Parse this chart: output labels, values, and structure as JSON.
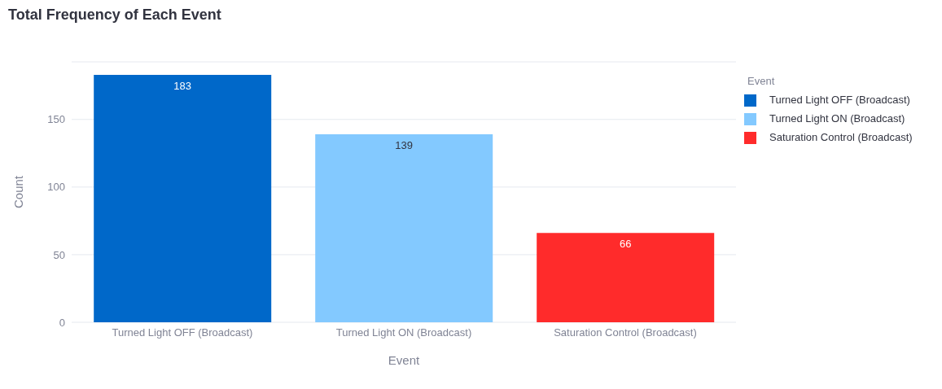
{
  "chart_data": {
    "type": "bar",
    "title": "Total Frequency of Each Event",
    "xlabel": "Event",
    "ylabel": "Count",
    "legend_title": "Event",
    "categories": [
      "Turned Light OFF (Broadcast)",
      "Turned Light ON (Broadcast)",
      "Saturation Control (Broadcast)"
    ],
    "series": [
      {
        "name": "Turned Light OFF (Broadcast)",
        "color": "#0068c9",
        "values": [
          183,
          null,
          null
        ]
      },
      {
        "name": "Turned Light ON (Broadcast)",
        "color": "#83c9ff",
        "values": [
          null,
          139,
          null
        ]
      },
      {
        "name": "Saturation Control (Broadcast)",
        "color": "#ff2b2b",
        "values": [
          null,
          null,
          66
        ]
      }
    ],
    "ylim": [
      0,
      192.6
    ],
    "yticks": [
      0,
      50,
      100,
      150
    ],
    "grid": "y",
    "legend": "right",
    "data_labels": true
  }
}
